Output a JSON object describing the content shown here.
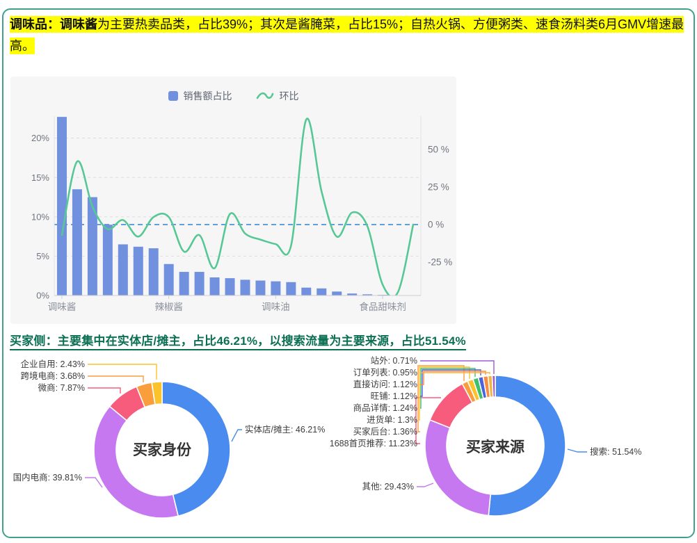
{
  "headline": {
    "bold": "调味品：调味酱",
    "rest": "为主要热卖品类，占比39%；其次是酱腌菜，占比15%；自热火锅、方便粥类、速食汤料类6月GMV增速最高。",
    "highlight_color": "#ffff00"
  },
  "section2_title": "买家侧：主要集中在实体店/摊主，占比46.21%，以搜索流量为主要来源，占比51.54%",
  "section2_color": "#0B6F52",
  "combo_legend": [
    {
      "label": "销售额占比",
      "color": "#7191DE",
      "type": "bar"
    },
    {
      "label": "环比",
      "color": "#57C796",
      "type": "line"
    }
  ],
  "chart_data": [
    {
      "type": "bar",
      "title": "调味品类目销售额占比与环比",
      "categories": [
        "调味酱",
        "",
        "",
        "",
        "",
        "",
        "",
        "辣椒酱",
        "",
        "",
        "",
        "",
        "",
        "",
        "调味油",
        "",
        "",
        "",
        "",
        "",
        "",
        "食品甜味剂",
        "",
        ""
      ],
      "series": [
        {
          "name": "销售额占比",
          "type": "bar",
          "y_axis": "left",
          "color": "#7191DE",
          "values": [
            22.7,
            13.5,
            12.5,
            9,
            6.5,
            6.2,
            6,
            4,
            3,
            3,
            2.3,
            2.2,
            2.0,
            1.9,
            1.8,
            1.7,
            1.0,
            0.9,
            0.5,
            0.25,
            0.15,
            0.08,
            0.04,
            0.02
          ]
        },
        {
          "name": "环比",
          "type": "line",
          "y_axis": "right",
          "color": "#57C796",
          "values": [
            -7,
            42,
            12,
            -3,
            3,
            -8,
            5,
            5,
            -18,
            -7,
            -29,
            7,
            -6,
            -10,
            -13,
            -14,
            70,
            22,
            -8,
            8,
            -1,
            -40,
            -45,
            0
          ]
        }
      ],
      "left_axis": {
        "ticks": [
          "0%",
          "5%",
          "10%",
          "15%",
          "20%"
        ],
        "tick_values": [
          0,
          5,
          10,
          15,
          20
        ],
        "range": [
          0,
          22.8
        ]
      },
      "right_axis": {
        "ticks": [
          "-25 %",
          "0 %",
          "25 %",
          "50 %"
        ],
        "tick_values": [
          -25,
          0,
          25,
          50
        ],
        "range": [
          -47.2,
          72.2
        ],
        "zero_line_color": "#5F9FDB"
      },
      "grid": true,
      "legend_position": "top"
    },
    {
      "type": "pie",
      "title": "买家身份",
      "slices": [
        {
          "label": "实体店/摊主",
          "value": 46.21,
          "color": "#4A8BF0"
        },
        {
          "label": "国内电商",
          "value": 39.81,
          "color": "#C678F0"
        },
        {
          "label": "微商",
          "value": 7.87,
          "color": "#F85C7C"
        },
        {
          "label": "跨境电商",
          "value": 3.68,
          "color": "#FA9D3B"
        },
        {
          "label": "企业自用",
          "value": 2.43,
          "color": "#FAC32C"
        }
      ]
    },
    {
      "type": "pie",
      "title": "买家来源",
      "slices": [
        {
          "label": "搜索",
          "value": 51.54,
          "color": "#4A8BF0"
        },
        {
          "label": "其他",
          "value": 29.43,
          "color": "#C678F0"
        },
        {
          "label": "1688首页推荐",
          "value": 11.23,
          "color": "#F85C7C"
        },
        {
          "label": "买家后台",
          "value": 1.36,
          "color": "#FA9D3B"
        },
        {
          "label": "进货单",
          "value": 1.3,
          "color": "#FAC32C"
        },
        {
          "label": "商品详情",
          "value": 1.24,
          "color": "#3EC06D"
        },
        {
          "label": "旺铺",
          "value": 1.12,
          "color": "#4A62DE"
        },
        {
          "label": "直接访问",
          "value": 1.12,
          "color": "#FB8B41"
        },
        {
          "label": "订单列表",
          "value": 0.95,
          "color": "#F4B33C"
        },
        {
          "label": "站外",
          "value": 0.71,
          "color": "#9B5BD6"
        }
      ]
    }
  ]
}
